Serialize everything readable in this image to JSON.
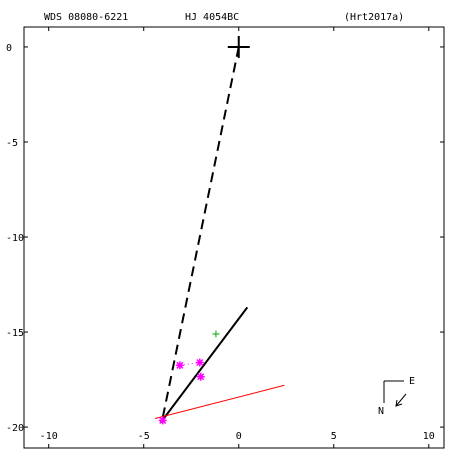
{
  "header": {
    "wds_id": "WDS 08080-6221",
    "pair_name": "HJ 4054BC",
    "orbit_ref": "(Hrt2017a)"
  },
  "compass": {
    "east_label": "E",
    "north_label": "N"
  },
  "chart_data": {
    "type": "scatter",
    "title": "",
    "xlabel": "",
    "ylabel": "",
    "xlim": [
      -11.3,
      10.8
    ],
    "ylim": [
      -21.1,
      1.05
    ],
    "x_ticks": [
      -10,
      -5,
      0,
      5,
      10
    ],
    "y_ticks": [
      0,
      -5,
      -10,
      -15,
      -20
    ],
    "x_tick_labels": [
      "-10",
      "-5",
      "0",
      "5",
      "10"
    ],
    "y_tick_labels": [
      "0",
      "-5",
      "-10",
      "-15",
      "-20"
    ],
    "grid": false,
    "primary_star": {
      "x": 0,
      "y": 0
    },
    "series": [
      {
        "kind": "dashed-line",
        "color": "#000000",
        "points": [
          [
            0.0,
            0.0
          ],
          [
            -4.0,
            -19.5
          ]
        ]
      },
      {
        "kind": "solid-line",
        "color": "#000000",
        "points": [
          [
            -4.1,
            -19.75
          ],
          [
            0.45,
            -13.7
          ]
        ]
      },
      {
        "kind": "solid-line",
        "color": "#ff0000",
        "points": [
          [
            -4.4,
            -19.55
          ],
          [
            2.4,
            -17.8
          ]
        ]
      },
      {
        "kind": "dotted-residual",
        "color": "#ff00ff",
        "points": [
          [
            -3.1,
            -16.75
          ],
          [
            -2.05,
            -16.6
          ]
        ]
      },
      {
        "kind": "star-markers",
        "color": "#ff00ff",
        "points": [
          [
            -3.1,
            -16.75
          ],
          [
            -2.05,
            -16.6
          ],
          [
            -2.0,
            -17.35
          ],
          [
            -4.0,
            -19.65
          ]
        ]
      },
      {
        "kind": "plus-markers",
        "color": "#00aa00",
        "points": [
          [
            -1.2,
            -15.1
          ]
        ]
      }
    ]
  }
}
